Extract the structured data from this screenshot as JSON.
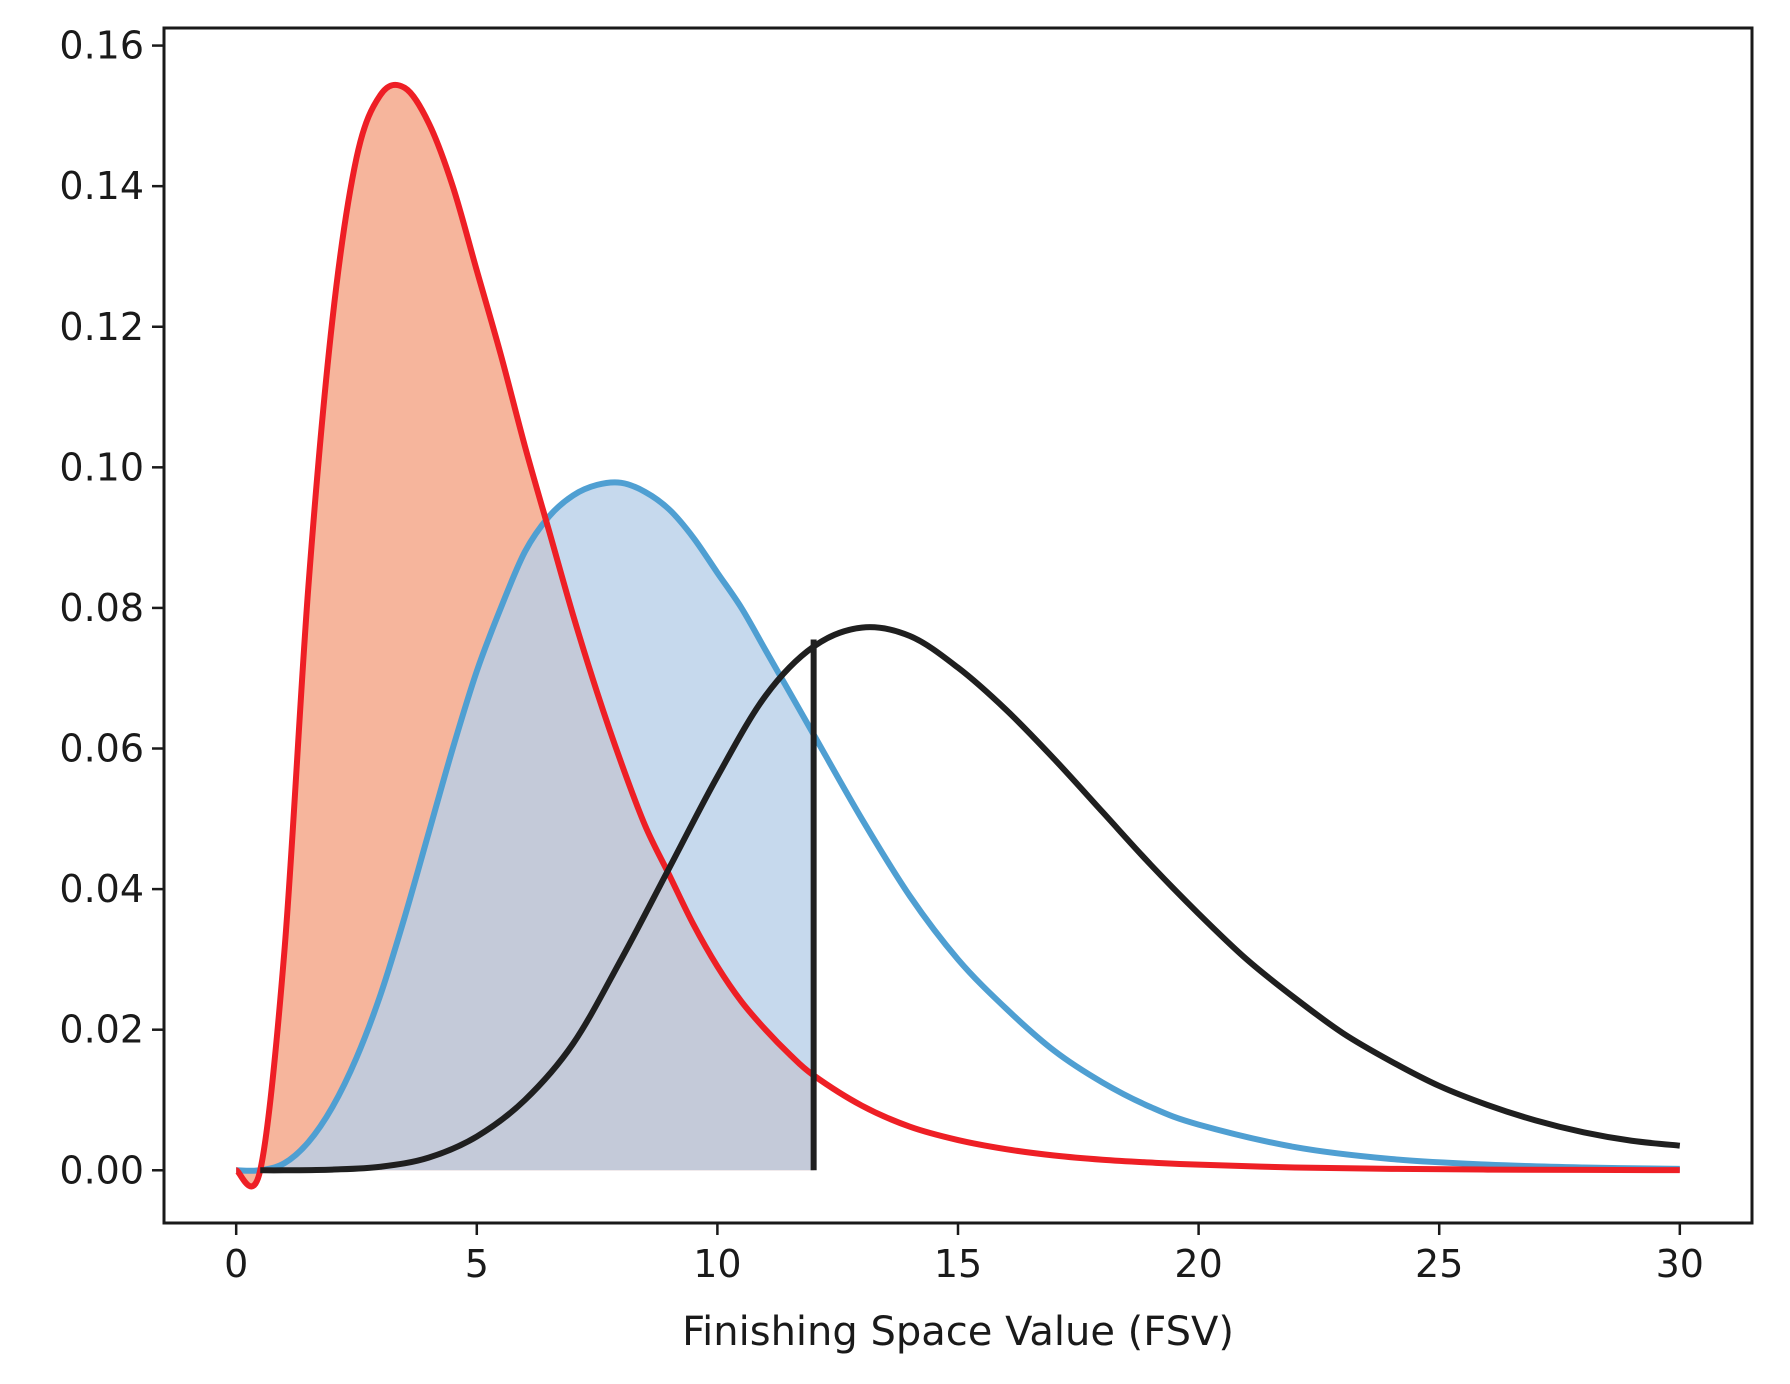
{
  "chart_data": {
    "type": "line",
    "title": "",
    "xlabel": "Finishing Space Value (FSV)",
    "ylabel": "",
    "xlim": [
      -1.5,
      31.5
    ],
    "ylim": [
      -0.0075,
      0.1625
    ],
    "xticks": [
      0,
      5,
      10,
      15,
      20,
      25,
      30
    ],
    "yticks": [
      0.0,
      0.02,
      0.04,
      0.06,
      0.08,
      0.1,
      0.12,
      0.14,
      0.16
    ],
    "xtick_labels": [
      "0",
      "5",
      "10",
      "15",
      "20",
      "25",
      "30"
    ],
    "ytick_labels": [
      "0.00",
      "0.02",
      "0.04",
      "0.06",
      "0.08",
      "0.10",
      "0.12",
      "0.14",
      "0.16"
    ],
    "fill_to_x": 12,
    "cutoff_line": {
      "x": 12,
      "y_top": 0.0755,
      "color": "#1f1f1f"
    },
    "series": [
      {
        "name": "red-curve",
        "color": "#ee1f25",
        "fill_color": "#f4a383",
        "filled": true,
        "x": [
          0,
          0.5,
          1,
          1.5,
          2,
          2.5,
          3,
          3.5,
          4,
          4.5,
          5,
          5.5,
          6,
          6.5,
          7,
          7.5,
          8,
          8.5,
          9,
          9.5,
          10,
          10.5,
          11,
          11.5,
          12,
          13,
          14,
          15,
          16,
          17,
          18,
          19,
          20,
          22,
          24,
          26,
          28,
          30
        ],
        "values": [
          0,
          0,
          0.031,
          0.083,
          0.121,
          0.144,
          0.153,
          0.154,
          0.149,
          0.14,
          0.128,
          0.116,
          0.103,
          0.091,
          0.079,
          0.068,
          0.058,
          0.049,
          0.042,
          0.035,
          0.029,
          0.024,
          0.02,
          0.0165,
          0.0135,
          0.0092,
          0.0062,
          0.0043,
          0.003,
          0.0021,
          0.0015,
          0.0011,
          0.0008,
          0.0004,
          0.0002,
          0.0001,
          5e-05,
          2e-05
        ]
      },
      {
        "name": "blue-curve",
        "color": "#4f9fd2",
        "fill_color": "#b8d0e8",
        "filled": true,
        "x": [
          0,
          0.5,
          1,
          1.5,
          2,
          2.5,
          3,
          3.5,
          4,
          4.5,
          5,
          5.5,
          6,
          6.5,
          7,
          7.5,
          8,
          8.5,
          9,
          9.5,
          10,
          10.5,
          11,
          11.5,
          12,
          13,
          14,
          15,
          16,
          17,
          18,
          19,
          20,
          22,
          24,
          26,
          28,
          30
        ],
        "values": [
          0,
          0,
          0.001,
          0.004,
          0.009,
          0.016,
          0.025,
          0.036,
          0.048,
          0.06,
          0.071,
          0.08,
          0.088,
          0.093,
          0.096,
          0.0975,
          0.0978,
          0.0965,
          0.094,
          0.09,
          0.085,
          0.08,
          0.074,
          0.068,
          0.062,
          0.05,
          0.039,
          0.03,
          0.023,
          0.017,
          0.0125,
          0.009,
          0.0065,
          0.0033,
          0.0016,
          0.0008,
          0.0004,
          0.0002
        ]
      },
      {
        "name": "black-curve",
        "color": "#1f1f1f",
        "filled": false,
        "x": [
          0.5,
          1,
          2,
          3,
          4,
          5,
          6,
          7,
          8,
          9,
          10,
          11,
          12,
          13,
          14,
          15,
          16,
          17,
          18,
          19,
          20,
          21,
          22,
          23,
          24,
          25,
          26,
          27,
          28,
          29,
          30
        ],
        "values": [
          0,
          0,
          0.0001,
          0.0005,
          0.0018,
          0.0048,
          0.01,
          0.018,
          0.03,
          0.043,
          0.056,
          0.0675,
          0.0745,
          0.0772,
          0.076,
          0.0715,
          0.0655,
          0.0585,
          0.051,
          0.0435,
          0.0365,
          0.03,
          0.0245,
          0.0195,
          0.0155,
          0.012,
          0.0093,
          0.0071,
          0.0054,
          0.0042,
          0.0035
        ]
      }
    ]
  }
}
